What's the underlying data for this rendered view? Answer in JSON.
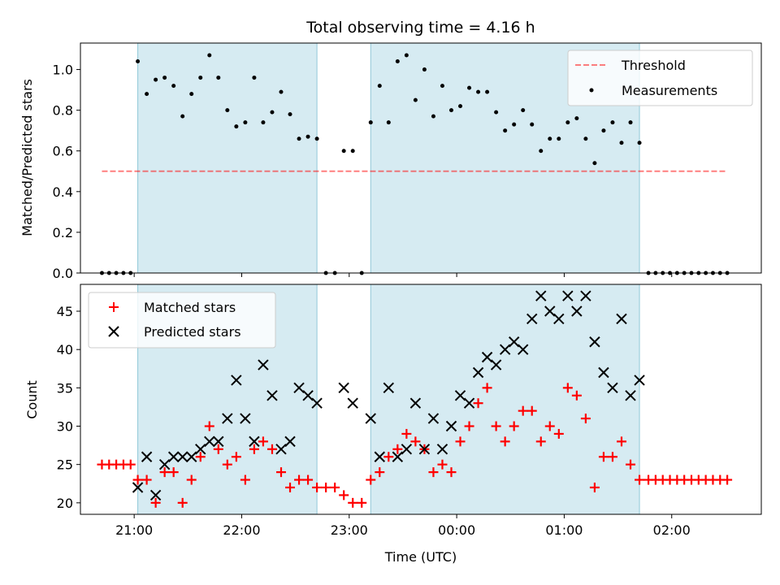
{
  "figure": {
    "title": "Total observing time = 4.16 h"
  },
  "colors": {
    "night_band": "#add8e6",
    "threshold": "#ff0000",
    "measurements": "#000000",
    "matched": "#ff0000",
    "predicted": "#000000",
    "axes": "#000000"
  },
  "chart_data": [
    {
      "type": "scatter",
      "name": "top-panel",
      "xlabel": "",
      "ylabel": "Matched/Predicted stars",
      "xlim": [
        "20:30",
        "02:50"
      ],
      "ylim": [
        0,
        1.13
      ],
      "yticks": [
        0.0,
        0.2,
        0.4,
        0.6,
        0.8,
        1.0
      ],
      "ytick_labels": [
        "0.0",
        "0.2",
        "0.4",
        "0.6",
        "0.8",
        "1.0"
      ],
      "x_time_labels": false,
      "grid": false,
      "legend": {
        "placement": "top-right",
        "entries": [
          "Threshold",
          "Measurements"
        ]
      },
      "shaded_spans": [
        [
          "21:02",
          "22:42"
        ],
        [
          "23:12",
          "01:42"
        ]
      ],
      "threshold": {
        "label": "Threshold",
        "value": 0.5,
        "x_range": [
          "20:42",
          "02:30"
        ],
        "style": "dashed"
      },
      "series": [
        {
          "name": "Measurements",
          "marker": "dot",
          "points": [
            [
              "20:42",
              0.0
            ],
            [
              "20:46",
              0.0
            ],
            [
              "20:50",
              0.0
            ],
            [
              "20:54",
              0.0
            ],
            [
              "20:58",
              0.0
            ],
            [
              "21:02",
              1.04
            ],
            [
              "21:07",
              0.88
            ],
            [
              "21:12",
              0.95
            ],
            [
              "21:17",
              0.96
            ],
            [
              "21:22",
              0.92
            ],
            [
              "21:27",
              0.77
            ],
            [
              "21:32",
              0.88
            ],
            [
              "21:37",
              0.96
            ],
            [
              "21:42",
              1.07
            ],
            [
              "21:47",
              0.96
            ],
            [
              "21:52",
              0.8
            ],
            [
              "21:57",
              0.72
            ],
            [
              "22:02",
              0.74
            ],
            [
              "22:07",
              0.96
            ],
            [
              "22:12",
              0.74
            ],
            [
              "22:17",
              0.79
            ],
            [
              "22:22",
              0.89
            ],
            [
              "22:27",
              0.78
            ],
            [
              "22:32",
              0.66
            ],
            [
              "22:37",
              0.67
            ],
            [
              "22:42",
              0.66
            ],
            [
              "22:47",
              0.0
            ],
            [
              "22:52",
              0.0
            ],
            [
              "22:57",
              0.6
            ],
            [
              "23:02",
              0.6
            ],
            [
              "23:07",
              0.0
            ],
            [
              "23:12",
              0.74
            ],
            [
              "23:17",
              0.92
            ],
            [
              "23:22",
              0.74
            ],
            [
              "23:27",
              1.04
            ],
            [
              "23:32",
              1.07
            ],
            [
              "23:37",
              0.85
            ],
            [
              "23:42",
              1.0
            ],
            [
              "23:47",
              0.77
            ],
            [
              "23:52",
              0.92
            ],
            [
              "23:57",
              0.8
            ],
            [
              "00:02",
              0.82
            ],
            [
              "00:07",
              0.91
            ],
            [
              "00:12",
              0.89
            ],
            [
              "00:17",
              0.89
            ],
            [
              "00:22",
              0.79
            ],
            [
              "00:27",
              0.7
            ],
            [
              "00:32",
              0.73
            ],
            [
              "00:37",
              0.8
            ],
            [
              "00:42",
              0.73
            ],
            [
              "00:47",
              0.6
            ],
            [
              "00:52",
              0.66
            ],
            [
              "00:57",
              0.66
            ],
            [
              "01:02",
              0.74
            ],
            [
              "01:07",
              0.76
            ],
            [
              "01:12",
              0.66
            ],
            [
              "01:17",
              0.54
            ],
            [
              "01:22",
              0.7
            ],
            [
              "01:27",
              0.74
            ],
            [
              "01:32",
              0.64
            ],
            [
              "01:37",
              0.74
            ],
            [
              "01:42",
              0.64
            ],
            [
              "01:47",
              0.0
            ],
            [
              "01:51",
              0.0
            ],
            [
              "01:55",
              0.0
            ],
            [
              "01:59",
              0.0
            ],
            [
              "02:03",
              0.0
            ],
            [
              "02:07",
              0.0
            ],
            [
              "02:11",
              0.0
            ],
            [
              "02:15",
              0.0
            ],
            [
              "02:19",
              0.0
            ],
            [
              "02:23",
              0.0
            ],
            [
              "02:27",
              0.0
            ],
            [
              "02:31",
              0.0
            ]
          ]
        }
      ]
    },
    {
      "type": "scatter",
      "name": "bottom-panel",
      "xlabel": "Time (UTC)",
      "ylabel": "Count",
      "xlim": [
        "20:30",
        "02:50"
      ],
      "ylim": [
        18.5,
        48.5
      ],
      "yticks": [
        20,
        25,
        30,
        35,
        40,
        45
      ],
      "ytick_labels": [
        "20",
        "25",
        "30",
        "35",
        "40",
        "45"
      ],
      "xticks": [
        "21:00",
        "22:00",
        "23:00",
        "00:00",
        "01:00",
        "02:00"
      ],
      "xtick_labels": [
        "21:00",
        "22:00",
        "23:00",
        "00:00",
        "01:00",
        "02:00"
      ],
      "grid": false,
      "legend": {
        "placement": "top-left",
        "entries": [
          "Matched stars",
          "Predicted stars"
        ]
      },
      "shaded_spans": [
        [
          "21:02",
          "22:42"
        ],
        [
          "23:12",
          "01:42"
        ]
      ],
      "series": [
        {
          "name": "Matched stars",
          "marker": "plus",
          "points": [
            [
              "20:42",
              25
            ],
            [
              "20:46",
              25
            ],
            [
              "20:50",
              25
            ],
            [
              "20:54",
              25
            ],
            [
              "20:58",
              25
            ],
            [
              "21:02",
              23
            ],
            [
              "21:07",
              23
            ],
            [
              "21:12",
              20
            ],
            [
              "21:17",
              24
            ],
            [
              "21:22",
              24
            ],
            [
              "21:27",
              20
            ],
            [
              "21:32",
              23
            ],
            [
              "21:37",
              26
            ],
            [
              "21:42",
              30
            ],
            [
              "21:47",
              27
            ],
            [
              "21:52",
              25
            ],
            [
              "21:57",
              26
            ],
            [
              "22:02",
              23
            ],
            [
              "22:07",
              27
            ],
            [
              "22:12",
              28
            ],
            [
              "22:17",
              27
            ],
            [
              "22:22",
              24
            ],
            [
              "22:27",
              22
            ],
            [
              "22:32",
              23
            ],
            [
              "22:37",
              23
            ],
            [
              "22:42",
              22
            ],
            [
              "22:47",
              22
            ],
            [
              "22:52",
              22
            ],
            [
              "22:57",
              21
            ],
            [
              "23:02",
              20
            ],
            [
              "23:07",
              20
            ],
            [
              "23:12",
              23
            ],
            [
              "23:17",
              24
            ],
            [
              "23:22",
              26
            ],
            [
              "23:27",
              27
            ],
            [
              "23:32",
              29
            ],
            [
              "23:37",
              28
            ],
            [
              "23:42",
              27
            ],
            [
              "23:47",
              24
            ],
            [
              "23:52",
              25
            ],
            [
              "23:57",
              24
            ],
            [
              "00:02",
              28
            ],
            [
              "00:07",
              30
            ],
            [
              "00:12",
              33
            ],
            [
              "00:17",
              35
            ],
            [
              "00:22",
              30
            ],
            [
              "00:27",
              28
            ],
            [
              "00:32",
              30
            ],
            [
              "00:37",
              32
            ],
            [
              "00:42",
              32
            ],
            [
              "00:47",
              28
            ],
            [
              "00:52",
              30
            ],
            [
              "00:57",
              29
            ],
            [
              "01:02",
              35
            ],
            [
              "01:07",
              34
            ],
            [
              "01:12",
              31
            ],
            [
              "01:17",
              22
            ],
            [
              "01:22",
              26
            ],
            [
              "01:27",
              26
            ],
            [
              "01:32",
              28
            ],
            [
              "01:37",
              25
            ],
            [
              "01:42",
              23
            ],
            [
              "01:47",
              23
            ],
            [
              "01:51",
              23
            ],
            [
              "01:55",
              23
            ],
            [
              "01:59",
              23
            ],
            [
              "02:03",
              23
            ],
            [
              "02:07",
              23
            ],
            [
              "02:11",
              23
            ],
            [
              "02:15",
              23
            ],
            [
              "02:19",
              23
            ],
            [
              "02:23",
              23
            ],
            [
              "02:27",
              23
            ],
            [
              "02:31",
              23
            ]
          ]
        },
        {
          "name": "Predicted stars",
          "marker": "x",
          "points": [
            [
              "21:02",
              22
            ],
            [
              "21:07",
              26
            ],
            [
              "21:12",
              21
            ],
            [
              "21:17",
              25
            ],
            [
              "21:22",
              26
            ],
            [
              "21:27",
              26
            ],
            [
              "21:32",
              26
            ],
            [
              "21:37",
              27
            ],
            [
              "21:42",
              28
            ],
            [
              "21:47",
              28
            ],
            [
              "21:52",
              31
            ],
            [
              "21:57",
              36
            ],
            [
              "22:02",
              31
            ],
            [
              "22:07",
              28
            ],
            [
              "22:12",
              38
            ],
            [
              "22:17",
              34
            ],
            [
              "22:22",
              27
            ],
            [
              "22:27",
              28
            ],
            [
              "22:32",
              35
            ],
            [
              "22:37",
              34
            ],
            [
              "22:42",
              33
            ],
            [
              "22:57",
              35
            ],
            [
              "23:02",
              33
            ],
            [
              "23:12",
              31
            ],
            [
              "23:17",
              26
            ],
            [
              "23:22",
              35
            ],
            [
              "23:27",
              26
            ],
            [
              "23:32",
              27
            ],
            [
              "23:37",
              33
            ],
            [
              "23:42",
              27
            ],
            [
              "23:47",
              31
            ],
            [
              "23:52",
              27
            ],
            [
              "23:57",
              30
            ],
            [
              "00:02",
              34
            ],
            [
              "00:07",
              33
            ],
            [
              "00:12",
              37
            ],
            [
              "00:17",
              39
            ],
            [
              "00:22",
              38
            ],
            [
              "00:27",
              40
            ],
            [
              "00:32",
              41
            ],
            [
              "00:37",
              40
            ],
            [
              "00:42",
              44
            ],
            [
              "00:47",
              47
            ],
            [
              "00:52",
              45
            ],
            [
              "00:57",
              44
            ],
            [
              "01:02",
              47
            ],
            [
              "01:07",
              45
            ],
            [
              "01:12",
              47
            ],
            [
              "01:17",
              41
            ],
            [
              "01:22",
              37
            ],
            [
              "01:27",
              35
            ],
            [
              "01:32",
              44
            ],
            [
              "01:37",
              34
            ],
            [
              "01:42",
              36
            ]
          ]
        }
      ]
    }
  ]
}
